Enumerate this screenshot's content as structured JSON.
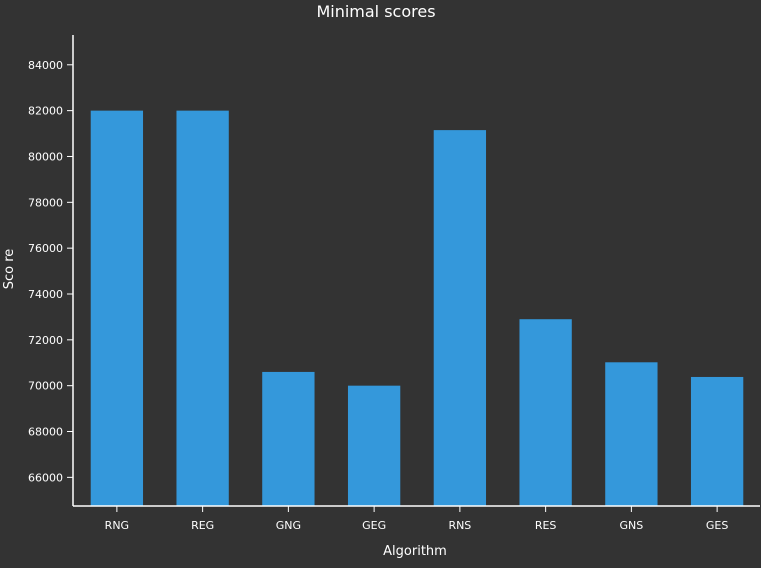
{
  "chart_data": {
    "type": "bar",
    "title": "Minimal scores",
    "xlabel": "Algorithm",
    "ylabel": "Sco re",
    "categories": [
      "RNG",
      "REG",
      "GNG",
      "GEG",
      "RNS",
      "RES",
      "GNS",
      "GES"
    ],
    "values": [
      82000,
      82000,
      70600,
      70000,
      81150,
      72900,
      71020,
      70380
    ],
    "ylim": [
      64750,
      85300
    ],
    "yticks": [
      66000,
      68000,
      70000,
      72000,
      74000,
      76000,
      78000,
      80000,
      82000,
      84000
    ],
    "ytick_labels": [
      "66000",
      "68000",
      "70000",
      "72000",
      "74000",
      "76000",
      "78000",
      "80000",
      "82000",
      "84000"
    ],
    "grid": false,
    "colors": {
      "background": "#333333",
      "bar": "#3498db",
      "axis": "#ffffff",
      "text": "#ffffff"
    }
  }
}
